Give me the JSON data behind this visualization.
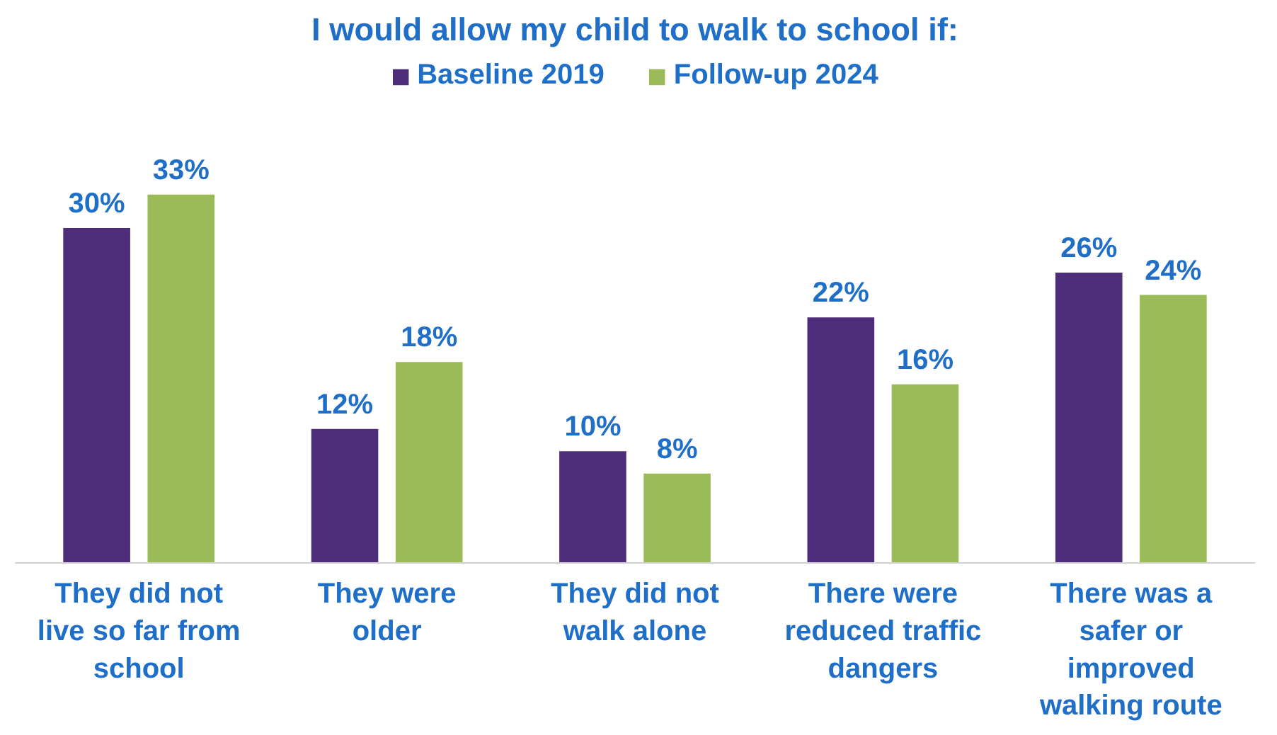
{
  "chart_data": {
    "type": "bar",
    "title": "I would allow my child to walk to school if:",
    "categories": [
      "They did not\nlive so far from\nschool",
      "They were\nolder",
      "They did not\nwalk alone",
      "There were\nreduced traffic\ndangers",
      "There was a\nsafer or\nimproved\nwalking route"
    ],
    "series": [
      {
        "name": "Baseline 2019",
        "color": "#4e2d7a",
        "values": [
          30,
          12,
          10,
          22,
          26
        ],
        "value_labels": [
          "30%",
          "12%",
          "10%",
          "22%",
          "26%"
        ]
      },
      {
        "name": "Follow-up 2024",
        "color": "#9bbb59",
        "values": [
          33,
          18,
          8,
          16,
          24
        ],
        "value_labels": [
          "33%",
          "18%",
          "8%",
          "16%",
          "24%"
        ]
      }
    ],
    "legend": "top"
  }
}
